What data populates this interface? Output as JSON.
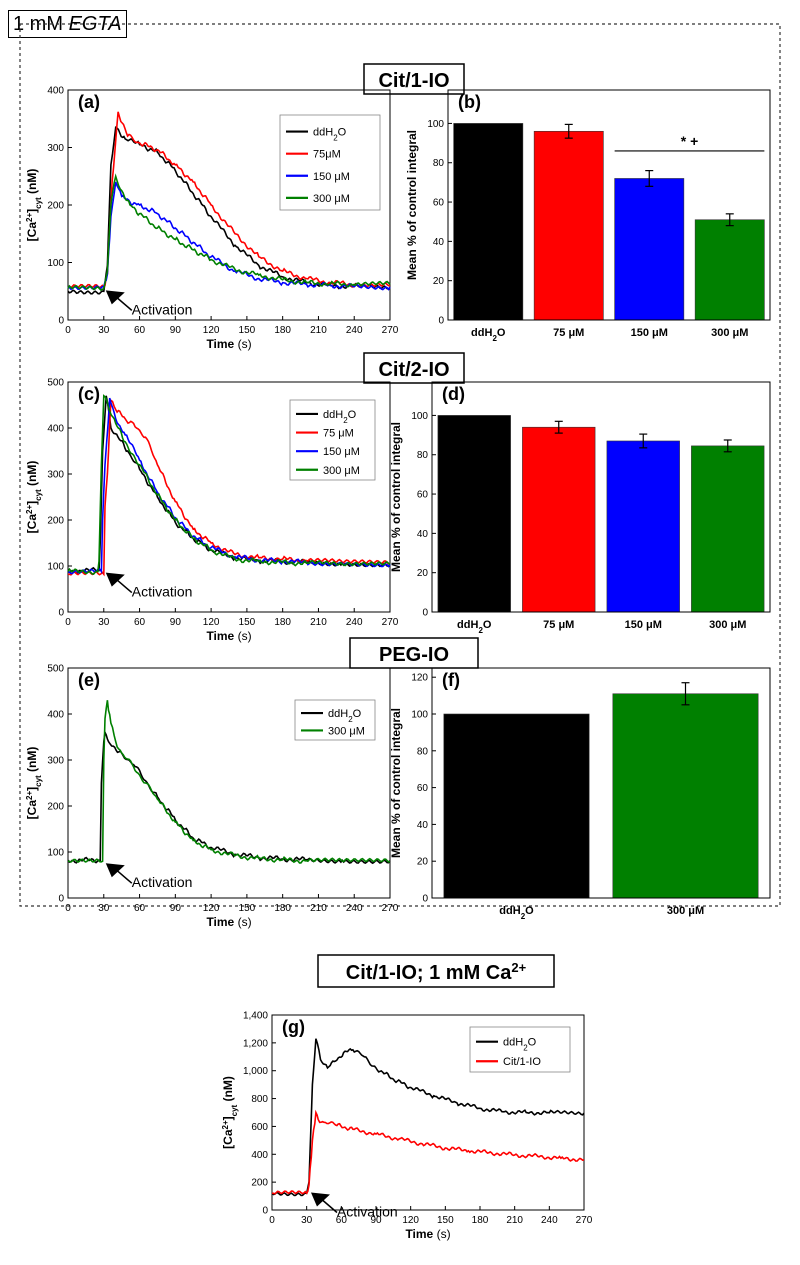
{
  "header": {
    "label_prefix": "1 mM ",
    "label_em": "EGTA"
  },
  "sections": [
    {
      "id": "cit1",
      "title": "Cit/1-IO"
    },
    {
      "id": "cit2",
      "title": "Cit/2-IO"
    },
    {
      "id": "peg",
      "title": "PEG-IO"
    },
    {
      "id": "g",
      "title": "Cit/1-IO; 1 mM Ca2+"
    }
  ],
  "colors": {
    "ddH2O": "#000000",
    "75": "#ff0000",
    "150": "#0000ff",
    "300": "#008000",
    "cit1io": "#ff0000"
  },
  "chart_data": [
    {
      "panel": "(a)",
      "type": "line",
      "xlabel": "Time (s)",
      "ylabel": "[Ca2+]cyt (nM)",
      "xlim": [
        0,
        270
      ],
      "ylim": [
        0,
        400
      ],
      "xticks": [
        0,
        30,
        60,
        90,
        120,
        150,
        180,
        210,
        240,
        270
      ],
      "yticks": [
        0,
        100,
        200,
        300,
        400
      ],
      "annotation": "Activation",
      "arrow_tip": [
        30,
        55
      ],
      "series": [
        {
          "name": "ddH2O",
          "color": "#000000",
          "x": [
            0,
            30,
            33,
            36,
            40,
            48,
            60,
            75,
            90,
            105,
            120,
            140,
            160,
            180,
            200,
            220,
            240,
            270
          ],
          "y": [
            50,
            50,
            95,
            270,
            335,
            315,
            305,
            292,
            260,
            220,
            180,
            130,
            95,
            75,
            65,
            60,
            58,
            57
          ]
        },
        {
          "name": "75μM",
          "color": "#ff0000",
          "x": [
            0,
            30,
            33,
            37,
            42,
            50,
            60,
            75,
            90,
            105,
            120,
            140,
            160,
            180,
            200,
            220,
            240,
            270
          ],
          "y": [
            57,
            57,
            80,
            240,
            362,
            320,
            308,
            296,
            270,
            240,
            200,
            150,
            110,
            85,
            72,
            65,
            62,
            60
          ]
        },
        {
          "name": "150 μM",
          "color": "#0000ff",
          "x": [
            0,
            30,
            33,
            36,
            40,
            45,
            52,
            60,
            75,
            90,
            105,
            120,
            140,
            160,
            180,
            200,
            220,
            240,
            270
          ],
          "y": [
            58,
            58,
            80,
            180,
            240,
            215,
            205,
            200,
            185,
            160,
            135,
            110,
            85,
            72,
            65,
            62,
            60,
            58,
            57
          ]
        },
        {
          "name": "300 μM",
          "color": "#008000",
          "x": [
            0,
            30,
            33,
            36,
            40,
            45,
            52,
            60,
            75,
            90,
            105,
            120,
            140,
            160,
            180,
            200,
            220,
            240,
            270
          ],
          "y": [
            55,
            55,
            85,
            200,
            250,
            225,
            200,
            185,
            160,
            140,
            122,
            105,
            88,
            78,
            70,
            65,
            63,
            62,
            62
          ]
        }
      ]
    },
    {
      "panel": "(b)",
      "type": "bar",
      "ylabel": "Mean % of control integral",
      "categories": [
        "ddH2O",
        "75 μM",
        "150 μM",
        "300 μM"
      ],
      "values": [
        100,
        96,
        72,
        51
      ],
      "errors": [
        0,
        3.5,
        4,
        3
      ],
      "colors": [
        "#000000",
        "#ff0000",
        "#0000ff",
        "#008000"
      ],
      "ylim": [
        0,
        117
      ],
      "yticks": [
        0,
        20,
        40,
        60,
        80,
        100
      ],
      "significance": {
        "label": "* +",
        "from": 2,
        "to": 3
      }
    },
    {
      "panel": "(c)",
      "type": "line",
      "xlabel": "Time (s)",
      "ylabel": "[Ca2+]cyt (nM)",
      "xlim": [
        0,
        270
      ],
      "ylim": [
        0,
        500
      ],
      "xticks": [
        0,
        30,
        60,
        90,
        120,
        150,
        180,
        210,
        240,
        270
      ],
      "yticks": [
        0,
        100,
        200,
        300,
        400,
        500
      ],
      "annotation": "Activation",
      "arrow_tip": [
        30,
        90
      ],
      "series": [
        {
          "name": "ddH2O",
          "color": "#000000",
          "x": [
            0,
            26,
            27,
            29,
            32,
            36,
            42,
            50,
            60,
            75,
            90,
            105,
            120,
            140,
            160,
            180,
            200,
            230,
            270
          ],
          "y": [
            90,
            90,
            150,
            350,
            470,
            400,
            380,
            350,
            310,
            250,
            195,
            160,
            135,
            118,
            112,
            110,
            108,
            106,
            104
          ]
        },
        {
          "name": "75 μM",
          "color": "#ff0000",
          "x": [
            0,
            30,
            31,
            33,
            36,
            40,
            48,
            55,
            65,
            75,
            90,
            105,
            120,
            140,
            160,
            180,
            200,
            230,
            270
          ],
          "y": [
            82,
            82,
            230,
            300,
            460,
            440,
            420,
            410,
            380,
            320,
            240,
            180,
            150,
            125,
            118,
            115,
            112,
            108,
            105
          ]
        },
        {
          "name": "150 μM",
          "color": "#0000ff",
          "x": [
            0,
            28,
            29,
            31,
            35,
            40,
            48,
            60,
            75,
            90,
            105,
            120,
            140,
            160,
            180,
            200,
            230,
            270
          ],
          "y": [
            88,
            88,
            200,
            320,
            465,
            420,
            385,
            330,
            260,
            205,
            165,
            140,
            120,
            113,
            110,
            108,
            106,
            104
          ]
        },
        {
          "name": "300 μM",
          "color": "#008000",
          "x": [
            0,
            25,
            26,
            28,
            30,
            34,
            40,
            48,
            60,
            75,
            90,
            105,
            120,
            140,
            160,
            180,
            200,
            230,
            270
          ],
          "y": [
            88,
            88,
            110,
            320,
            470,
            445,
            410,
            370,
            320,
            255,
            200,
            160,
            135,
            115,
            110,
            108,
            106,
            104,
            103
          ]
        }
      ]
    },
    {
      "panel": "(d)",
      "type": "bar",
      "ylabel": "Mean % of control integral",
      "categories": [
        "ddH2O",
        "75 μM",
        "150 μM",
        "300 μM"
      ],
      "values": [
        100,
        94,
        87,
        84.5
      ],
      "errors": [
        0,
        3,
        3.5,
        3
      ],
      "colors": [
        "#000000",
        "#ff0000",
        "#0000ff",
        "#008000"
      ],
      "ylim": [
        0,
        117
      ],
      "yticks": [
        0,
        20,
        40,
        60,
        80,
        100
      ]
    },
    {
      "panel": "(e)",
      "type": "line",
      "xlabel": "Time (s)",
      "ylabel": "[Ca2+]cyt (nM)",
      "xlim": [
        0,
        270
      ],
      "ylim": [
        0,
        500
      ],
      "xticks": [
        0,
        30,
        60,
        90,
        120,
        150,
        180,
        210,
        240,
        270
      ],
      "yticks": [
        0,
        100,
        200,
        300,
        400,
        500
      ],
      "annotation": "Activation",
      "arrow_tip": [
        30,
        80
      ],
      "series": [
        {
          "name": "ddH2O",
          "color": "#000000",
          "x": [
            0,
            27,
            28,
            30,
            31,
            34,
            38,
            45,
            55,
            65,
            75,
            90,
            105,
            120,
            140,
            160,
            180,
            200,
            230,
            270
          ],
          "y": [
            82,
            82,
            250,
            340,
            360,
            340,
            330,
            315,
            290,
            255,
            220,
            170,
            130,
            110,
            95,
            88,
            85,
            83,
            82,
            81
          ]
        },
        {
          "name": "300 μM",
          "color": "#008000",
          "x": [
            0,
            29,
            30,
            31,
            33,
            36,
            40,
            45,
            55,
            65,
            75,
            90,
            105,
            120,
            140,
            160,
            180,
            200,
            230,
            270
          ],
          "y": [
            80,
            80,
            300,
            390,
            430,
            380,
            340,
            315,
            285,
            250,
            215,
            165,
            125,
            105,
            92,
            86,
            83,
            81,
            80,
            79
          ]
        }
      ]
    },
    {
      "panel": "(f)",
      "type": "bar",
      "ylabel": "Mean % of control integral",
      "categories": [
        "ddH2O",
        "300 μM"
      ],
      "values": [
        100,
        111
      ],
      "errors": [
        0,
        6
      ],
      "colors": [
        "#000000",
        "#008000"
      ],
      "ylim": [
        0,
        125
      ],
      "yticks": [
        0,
        20,
        40,
        60,
        80,
        100,
        120
      ]
    },
    {
      "panel": "(g)",
      "type": "line",
      "xlabel": "Time (s)",
      "ylabel": "[Ca2+]cyt (nM)",
      "xlim": [
        0,
        270
      ],
      "ylim": [
        0,
        1400
      ],
      "xticks": [
        0,
        30,
        60,
        90,
        120,
        150,
        180,
        210,
        240,
        270
      ],
      "yticks": [
        0,
        200,
        400,
        600,
        800,
        1000,
        1200,
        1400
      ],
      "ytick_labels": [
        "0",
        "200",
        "400",
        "600",
        "800",
        "1,000",
        "1,200",
        "1,400"
      ],
      "annotation": "Activation",
      "arrow_tip": [
        32,
        140
      ],
      "series": [
        {
          "name": "ddH2O",
          "color": "#000000",
          "x": [
            0,
            30,
            32,
            35,
            38,
            42,
            48,
            55,
            62,
            70,
            80,
            90,
            105,
            120,
            140,
            160,
            180,
            200,
            220,
            240,
            270
          ],
          "y": [
            120,
            120,
            200,
            900,
            1230,
            1080,
            1020,
            1070,
            1130,
            1150,
            1100,
            1020,
            940,
            880,
            820,
            770,
            730,
            705,
            700,
            698,
            695
          ]
        },
        {
          "name": "Cit/1-IO",
          "color": "#ff0000",
          "x": [
            0,
            30,
            32,
            35,
            38,
            40,
            45,
            55,
            70,
            90,
            110,
            130,
            150,
            170,
            190,
            210,
            230,
            250,
            270
          ],
          "y": [
            120,
            120,
            180,
            500,
            700,
            650,
            630,
            610,
            580,
            545,
            510,
            475,
            445,
            425,
            410,
            395,
            385,
            372,
            360
          ]
        }
      ]
    }
  ]
}
